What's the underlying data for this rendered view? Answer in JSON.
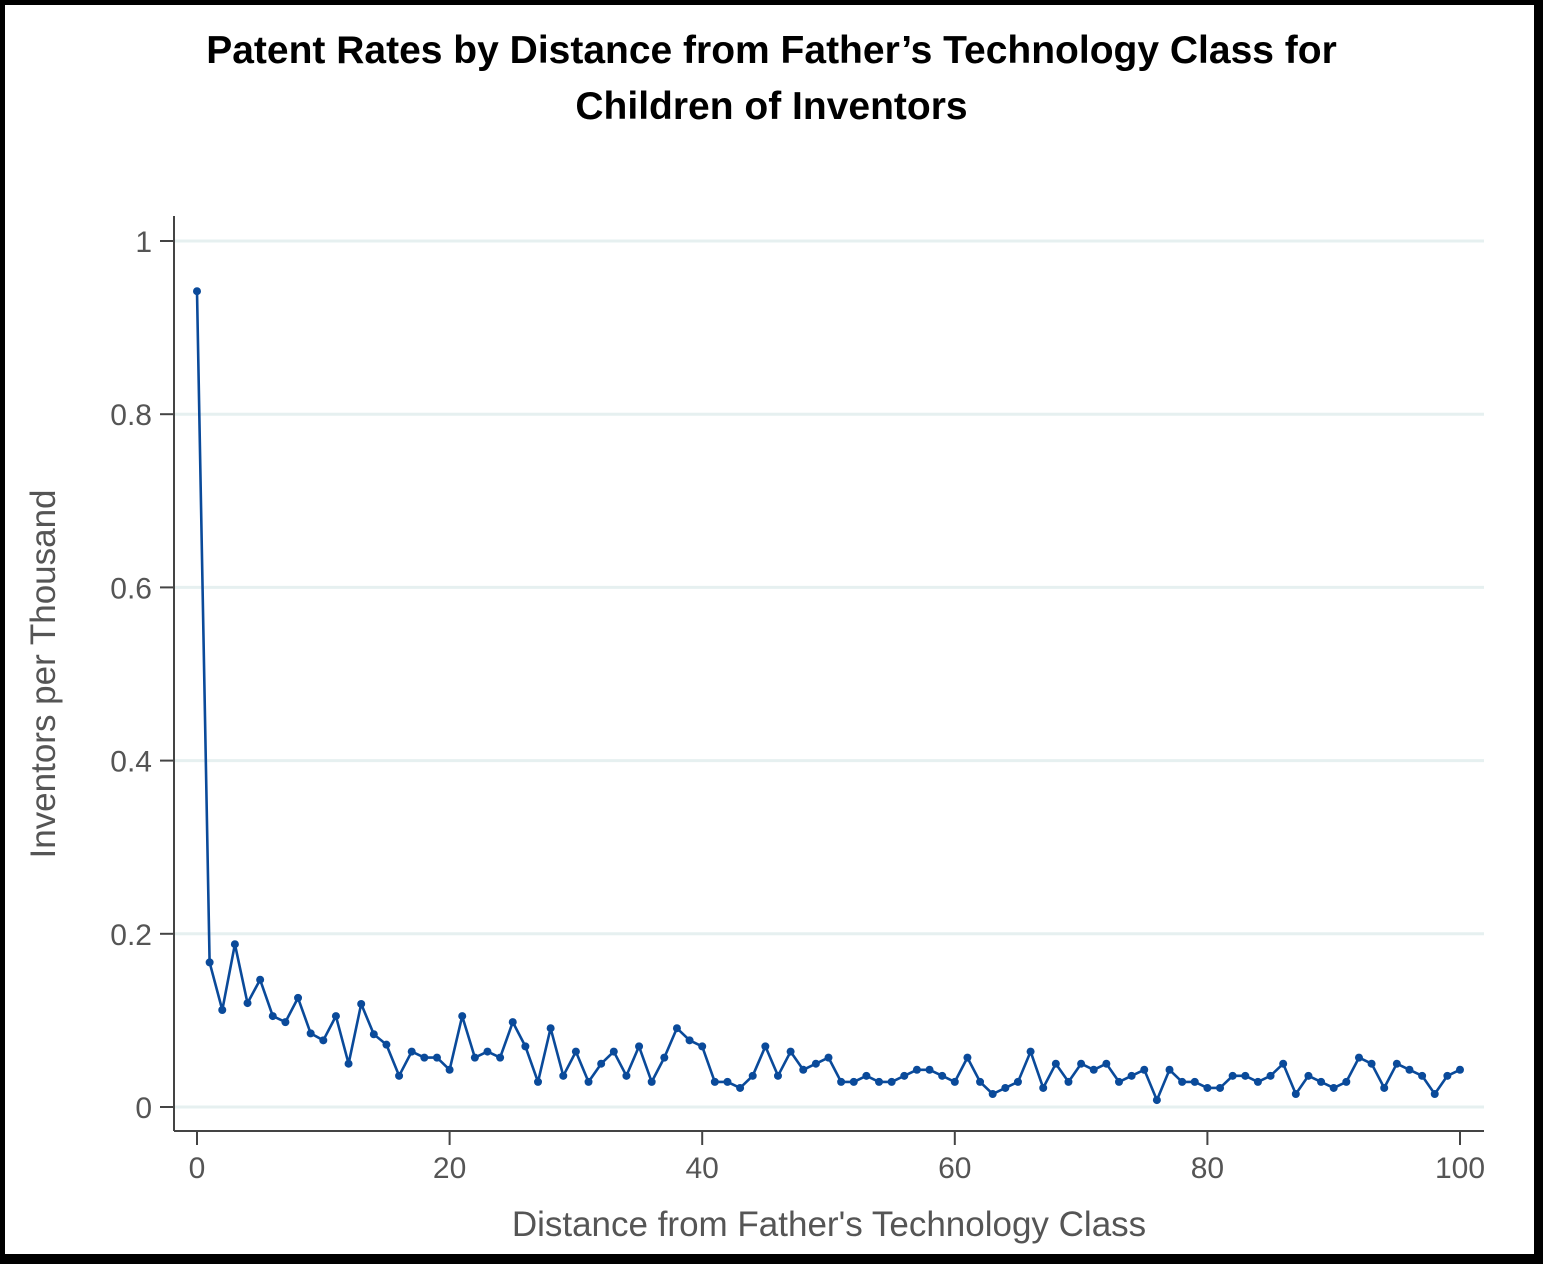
{
  "chart_data": {
    "type": "line",
    "title_line1": "Patent Rates by Distance from Father’s Technology Class for",
    "title_line2": "Children of Inventors",
    "xlabel": "Distance from Father's Technology Class",
    "ylabel": "Inventors per Thousand",
    "xlim": [
      0,
      100
    ],
    "ylim": [
      0,
      1
    ],
    "xticks": [
      0,
      20,
      40,
      60,
      80,
      100
    ],
    "xtick_labels": [
      "0",
      "20",
      "40",
      "60",
      "80",
      "100"
    ],
    "yticks": [
      0,
      0.2,
      0.4,
      0.6,
      0.8,
      1
    ],
    "ytick_labels": [
      "0",
      "0.2",
      "0.4",
      "0.6",
      "0.8",
      "1"
    ],
    "grid": "horizontal",
    "line_color": "#0a4a9a",
    "grid_color": "#e6f0f0",
    "series": [
      {
        "name": "Inventors per Thousand",
        "x": [
          0,
          1,
          2,
          3,
          4,
          5,
          6,
          7,
          8,
          9,
          10,
          11,
          12,
          13,
          14,
          15,
          16,
          17,
          18,
          19,
          20,
          21,
          22,
          23,
          24,
          25,
          26,
          27,
          28,
          29,
          30,
          31,
          32,
          33,
          34,
          35,
          36,
          37,
          38,
          39,
          40,
          41,
          42,
          43,
          44,
          45,
          46,
          47,
          48,
          49,
          50,
          51,
          52,
          53,
          54,
          55,
          56,
          57,
          58,
          59,
          60,
          61,
          62,
          63,
          64,
          65,
          66,
          67,
          68,
          69,
          70,
          71,
          72,
          73,
          74,
          75,
          76,
          77,
          78,
          79,
          80,
          81,
          82,
          83,
          84,
          85,
          86,
          87,
          88,
          89,
          90,
          91,
          92,
          93,
          94,
          95,
          96,
          97,
          98,
          99,
          100
        ],
        "y": [
          0.942,
          0.167,
          0.112,
          0.188,
          0.12,
          0.147,
          0.105,
          0.098,
          0.126,
          0.085,
          0.077,
          0.105,
          0.05,
          0.119,
          0.084,
          0.072,
          0.036,
          0.064,
          0.057,
          0.057,
          0.043,
          0.105,
          0.057,
          0.064,
          0.057,
          0.098,
          0.07,
          0.029,
          0.091,
          0.036,
          0.064,
          0.029,
          0.05,
          0.064,
          0.036,
          0.07,
          0.029,
          0.057,
          0.091,
          0.077,
          0.07,
          0.029,
          0.029,
          0.022,
          0.036,
          0.07,
          0.036,
          0.064,
          0.043,
          0.05,
          0.057,
          0.029,
          0.029,
          0.036,
          0.029,
          0.029,
          0.036,
          0.043,
          0.043,
          0.036,
          0.029,
          0.057,
          0.029,
          0.015,
          0.022,
          0.029,
          0.064,
          0.022,
          0.05,
          0.029,
          0.05,
          0.043,
          0.05,
          0.029,
          0.036,
          0.043,
          0.008,
          0.043,
          0.029,
          0.029,
          0.022,
          0.022,
          0.036,
          0.036,
          0.029,
          0.036,
          0.05,
          0.015,
          0.036,
          0.029,
          0.022,
          0.029,
          0.057,
          0.05,
          0.022,
          0.05,
          0.043,
          0.036,
          0.015,
          0.036,
          0.043
        ]
      }
    ]
  }
}
